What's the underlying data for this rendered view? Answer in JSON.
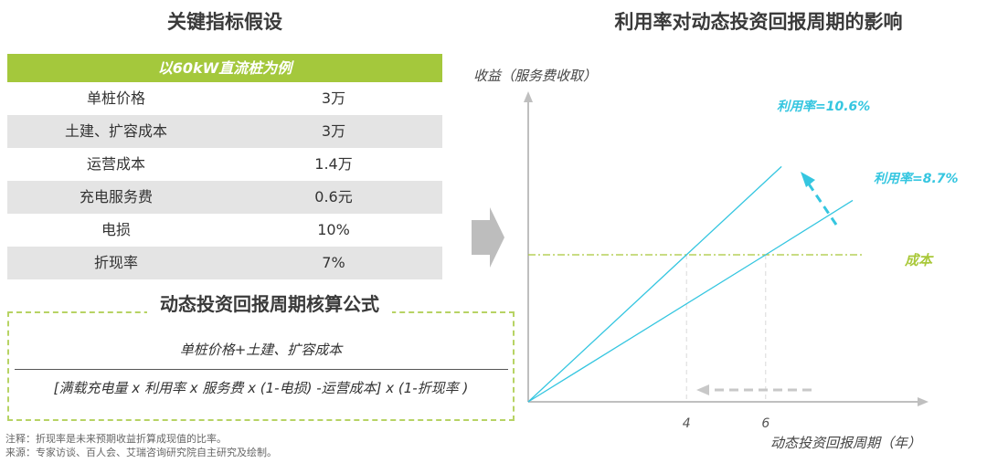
{
  "left_title": "关键指标假设",
  "table": {
    "header": "以60kW直流桩为例",
    "rows": [
      {
        "label": "单桩价格",
        "value": "3万"
      },
      {
        "label": "土建、扩容成本",
        "value": "3万"
      },
      {
        "label": "运营成本",
        "value": "1.4万"
      },
      {
        "label": "充电服务费",
        "value": "0.6元"
      },
      {
        "label": "电损",
        "value": "10%"
      },
      {
        "label": "折现率",
        "value": "7%"
      }
    ]
  },
  "formula": {
    "title": "动态投资回报周期核算公式",
    "numerator": "单桩价格+土建、扩容成本",
    "denominator": "[满载充电量 x 利用率 x 服务费 x (1-电损) -运营成本] x (1-折现率 )"
  },
  "notes": {
    "note": "注释：折现率是未来预期收益折算成现值的比率。",
    "source": "来源：专家访谈、百人会、艾瑞咨询研究院自主研究及绘制。"
  },
  "chart_data": {
    "type": "line",
    "title": "利用率对动态投资回报周期的影响",
    "ylabel": "收益（服务费收取）",
    "xlabel": "动态投资回报周期（年）",
    "x_ticks": [
      4,
      6
    ],
    "xlim": [
      0,
      8.3
    ],
    "ylim": [
      0,
      1.7
    ],
    "series": [
      {
        "name": "利用率=10.6%",
        "x": [
          0,
          4,
          6.4
        ],
        "y": [
          0,
          1,
          1.6
        ]
      },
      {
        "name": "利用率=8.7%",
        "x": [
          0,
          6,
          8.2
        ],
        "y": [
          0,
          1,
          1.37
        ]
      }
    ],
    "reference_line": {
      "name": "成本",
      "y": 1
    },
    "colors": {
      "series": "#35c6e0",
      "reference": "#a9c839",
      "axis": "#bfbfbf",
      "label": "#35c6e0"
    }
  }
}
